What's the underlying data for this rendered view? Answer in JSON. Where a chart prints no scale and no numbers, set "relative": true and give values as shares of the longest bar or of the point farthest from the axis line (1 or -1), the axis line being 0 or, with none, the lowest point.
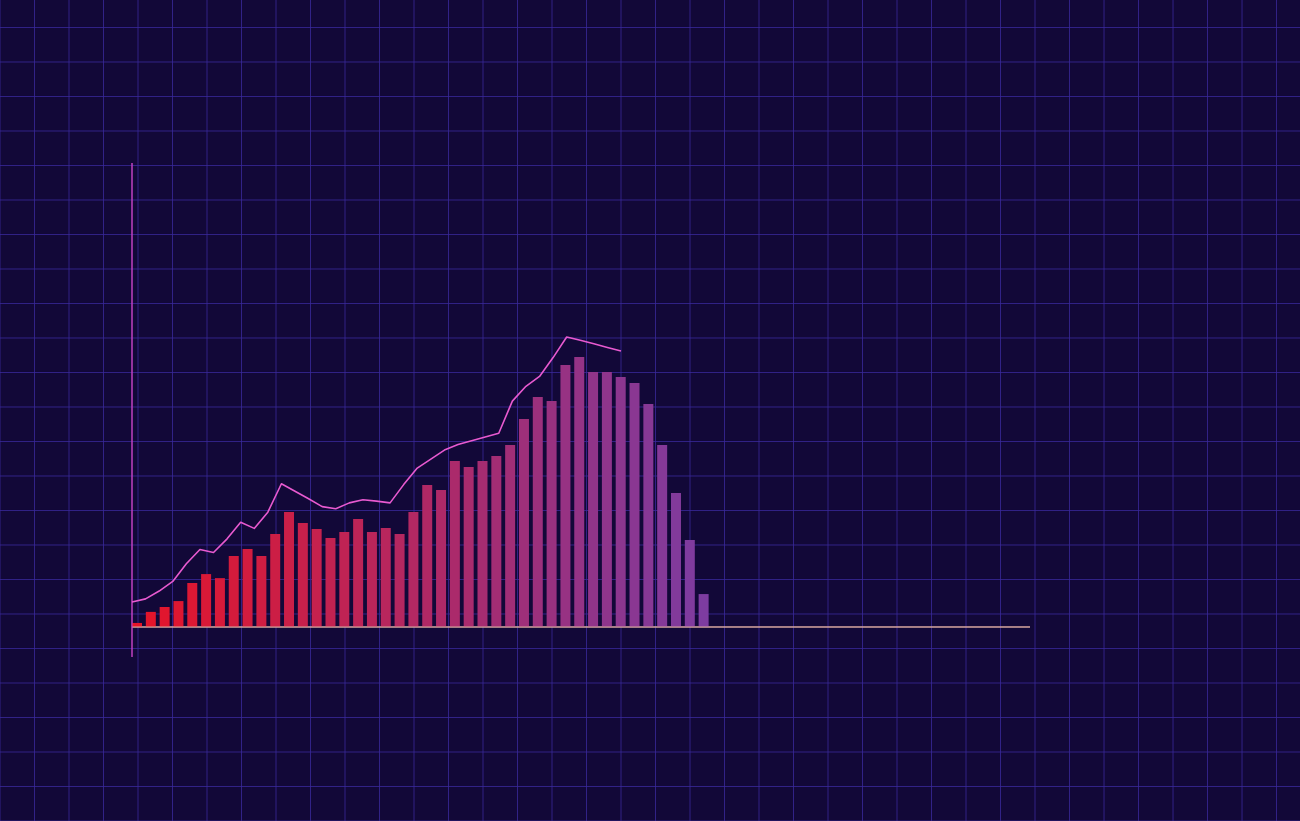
{
  "chart_data": [
    {
      "type": "bar",
      "relative": true,
      "grid": true,
      "categories": [
        null,
        null,
        null,
        null,
        null,
        null,
        null,
        null,
        null,
        null,
        null,
        null,
        null,
        null,
        null,
        null,
        null,
        null,
        null,
        null,
        null,
        null,
        null,
        null,
        null,
        null,
        null,
        null,
        null,
        null,
        null,
        null,
        null,
        null,
        null,
        null,
        null,
        null,
        null,
        null,
        null,
        null
      ],
      "values": [
        0.015,
        0.056,
        0.074,
        0.096,
        0.163,
        0.196,
        0.181,
        0.263,
        0.289,
        0.263,
        0.344,
        0.426,
        0.385,
        0.363,
        0.33,
        0.352,
        0.4,
        0.352,
        0.367,
        0.344,
        0.426,
        0.526,
        0.507,
        0.615,
        0.593,
        0.615,
        0.633,
        0.674,
        0.77,
        0.852,
        0.837,
        0.97,
        1,
        0.944,
        0.944,
        0.926,
        0.904,
        0.826,
        0.674,
        0.496,
        0.322,
        0.122
      ],
      "colors": [
        "#e61428",
        "#e3152b",
        "#e1162e",
        "#de1731",
        "#dc1834",
        "#d91937",
        "#d71a3a",
        "#d41b3c",
        "#d21c3f",
        "#cf1d42",
        "#cc1e45",
        "#ca1f48",
        "#c7204b",
        "#c5214e",
        "#c22251",
        "#c02354",
        "#bd2457",
        "#ba255a",
        "#b8265d",
        "#b52760",
        "#b32863",
        "#b02865",
        "#ae2968",
        "#ab2a6b",
        "#a92b6e",
        "#a62c71",
        "#a32d74",
        "#a12e77",
        "#9e2f7a",
        "#9c307d",
        "#993180",
        "#973283",
        "#943386",
        "#913489",
        "#8f358c",
        "#8c368f",
        "#8a3792",
        "#873895",
        "#853998",
        "#823a9b",
        "#803b9e",
        "#7d3ca0"
      ]
    },
    {
      "type": "line",
      "relative": true,
      "color": "#e85ad0",
      "categories": [
        null,
        null,
        null,
        null,
        null,
        null,
        null,
        null,
        null,
        null,
        null,
        null,
        null,
        null,
        null,
        null,
        null,
        null,
        null,
        null,
        null,
        null,
        null,
        null,
        null,
        null,
        null,
        null,
        null,
        null,
        null,
        null,
        null,
        null,
        null,
        null,
        null
      ],
      "values": [
        0.086,
        0.097,
        0.124,
        0.157,
        0.218,
        0.267,
        0.257,
        0.304,
        0.361,
        0.34,
        0.396,
        0.494,
        0.468,
        0.442,
        0.415,
        0.408,
        0.428,
        0.439,
        0.434,
        0.428,
        0.491,
        0.548,
        0.579,
        0.61,
        0.629,
        0.642,
        0.655,
        0.668,
        0.779,
        0.83,
        0.864,
        0.929,
        1,
        0.989,
        0.977,
        0.964,
        0.952
      ]
    }
  ]
}
